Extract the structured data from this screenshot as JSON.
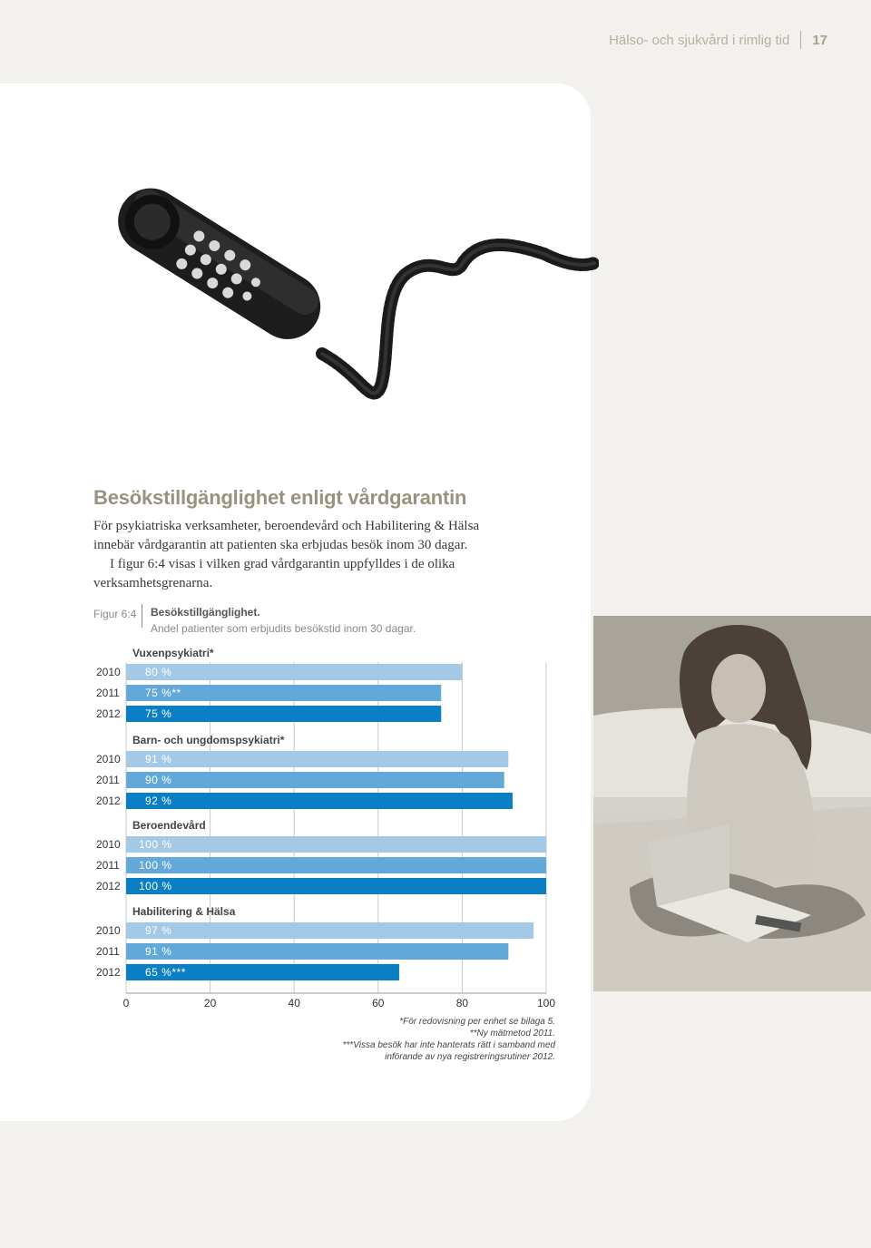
{
  "header": {
    "section": "Hälso- och sjukvård i rimlig tid",
    "page": "17"
  },
  "article": {
    "title": "Besökstillgänglighet enligt vårdgarantin",
    "intro_lines": [
      "För psykiatriska verksamheter, beroendevård och Habilitering & Hälsa",
      "innebär vårdgarantin att patienten ska erbjudas besök inom 30 dagar.",
      "I figur 6:4 visas i vilken grad vårdgarantin uppfylldes i de olika",
      "verksamhetsgrenarna."
    ]
  },
  "figure": {
    "label": "Figur 6:4",
    "title": "Besökstillgänglighet.",
    "subtitle": "Andel patienter som erbjudits besökstid inom 30 dagar."
  },
  "chart_data": {
    "type": "bar",
    "orientation": "horizontal",
    "xlim": [
      0,
      100
    ],
    "xticks": [
      "0",
      "20",
      "40",
      "60",
      "80",
      "100"
    ],
    "grid": true,
    "year_colors": {
      "2010": "#a3c9e6",
      "2011": "#62a9d9",
      "2012": "#0a7fc4"
    },
    "groups": [
      {
        "name": "Vuxenpsykiatri*",
        "bars": [
          {
            "year": "2010",
            "value": 80,
            "label": "80 %"
          },
          {
            "year": "2011",
            "value": 75,
            "label": "75 %**"
          },
          {
            "year": "2012",
            "value": 75,
            "label": "75 %"
          }
        ]
      },
      {
        "name": "Barn- och ungdomspsykiatri*",
        "bars": [
          {
            "year": "2010",
            "value": 91,
            "label": "91 %"
          },
          {
            "year": "2011",
            "value": 90,
            "label": "90 %"
          },
          {
            "year": "2012",
            "value": 92,
            "label": "92 %"
          }
        ]
      },
      {
        "name": "Beroendevård",
        "bars": [
          {
            "year": "2010",
            "value": 100,
            "label": "100 %"
          },
          {
            "year": "2011",
            "value": 100,
            "label": "100 %"
          },
          {
            "year": "2012",
            "value": 100,
            "label": "100 %"
          }
        ]
      },
      {
        "name": "Habilitering & Hälsa",
        "bars": [
          {
            "year": "2010",
            "value": 97,
            "label": "97 %"
          },
          {
            "year": "2011",
            "value": 91,
            "label": "91 %"
          },
          {
            "year": "2012",
            "value": 65,
            "label": "65 %***"
          }
        ]
      }
    ]
  },
  "footnotes": [
    "*För redovisning per enhet se bilaga 5.",
    "**Ny mätmetod 2011.",
    "***Vissa besök har inte hanterats rätt i samband med",
    "införande av nya registreringsrutiner 2012."
  ]
}
